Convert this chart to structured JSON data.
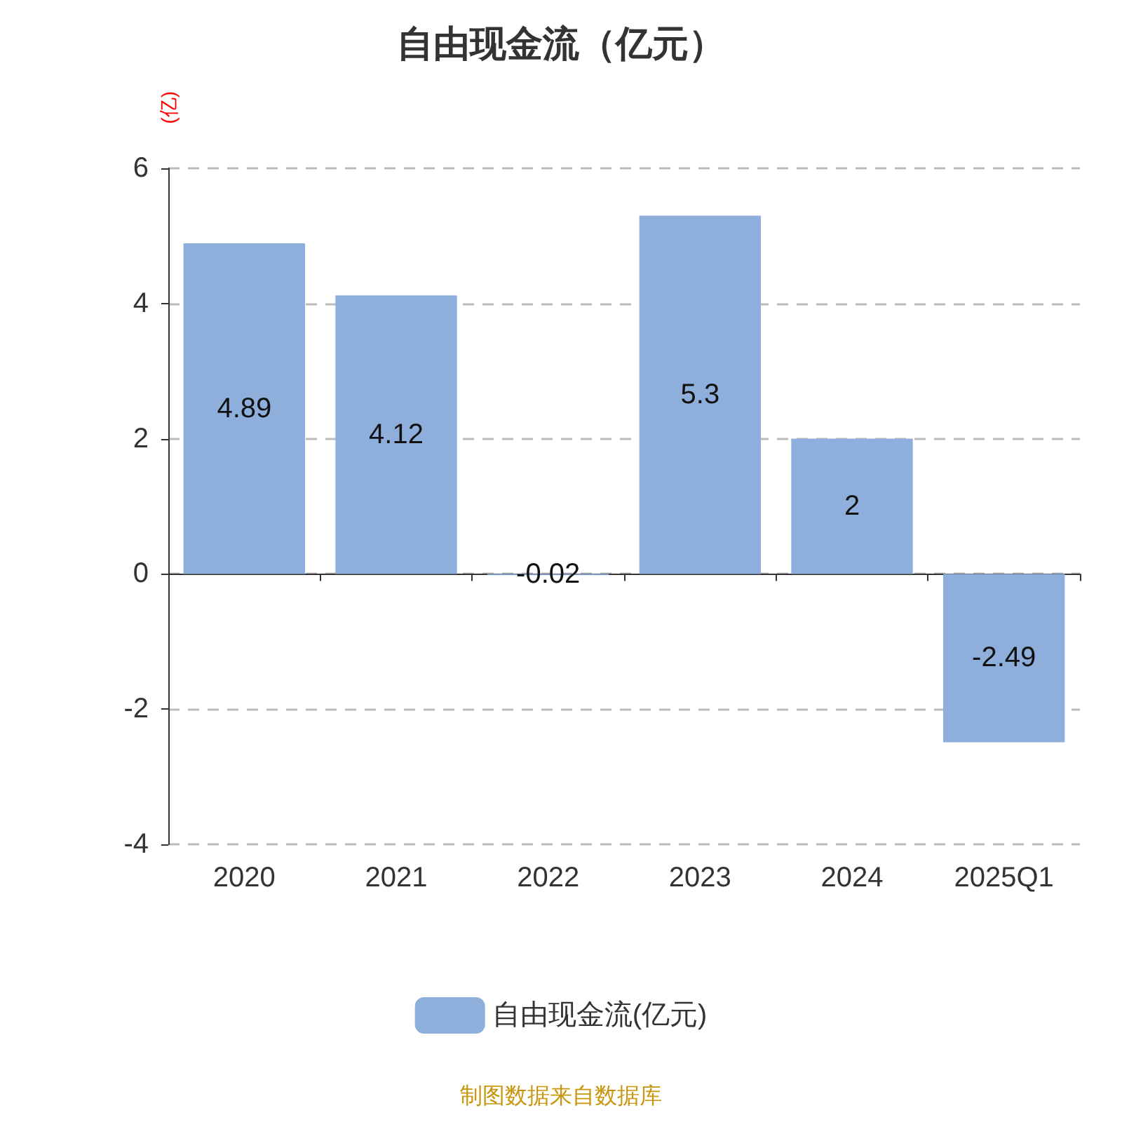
{
  "chart_data": {
    "type": "bar",
    "title": "自由现金流（亿元）",
    "ylabel": "(亿)",
    "categories": [
      "2020",
      "2021",
      "2022",
      "2023",
      "2024",
      "2025Q1"
    ],
    "series": [
      {
        "name": "自由现金流(亿元)",
        "color": "#8eaedb",
        "values": [
          4.89,
          4.12,
          -0.02,
          5.3,
          2,
          -2.49
        ]
      }
    ],
    "ylim": [
      -4,
      6
    ],
    "yticks": [
      -4,
      -2,
      0,
      2,
      4,
      6
    ],
    "grid": "y",
    "legend": "bottom",
    "data_labels": true,
    "annotations": [
      "制图数据来自数据库"
    ]
  }
}
